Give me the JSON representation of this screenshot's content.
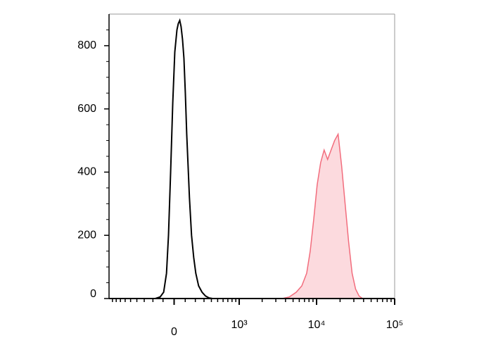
{
  "chart_data": {
    "type": "histogram-overlay",
    "xscale": "asinh",
    "xlim": [
      -1000,
      100000
    ],
    "ylim": [
      0,
      900
    ],
    "xticks": [
      0,
      {
        "value": 1000,
        "label": "10³"
      },
      {
        "value": 10000,
        "label": "10⁴"
      },
      {
        "value": 100000,
        "label": "10⁵"
      }
    ],
    "xminorticks": [
      -900,
      -800,
      -700,
      -600,
      -500,
      -400,
      -300,
      -200,
      -100,
      100,
      200,
      300,
      400,
      500,
      600,
      700,
      800,
      900,
      2000,
      3000,
      4000,
      5000,
      6000,
      7000,
      8000,
      9000,
      20000,
      30000,
      40000,
      50000,
      60000,
      70000,
      80000,
      90000
    ],
    "yticks": [
      0,
      200,
      400,
      600,
      800
    ],
    "yminorticks": [
      50,
      100,
      150,
      250,
      300,
      350,
      450,
      500,
      550,
      650,
      700,
      750,
      850
    ],
    "series": [
      {
        "color": "#000000",
        "filled": false,
        "x": [
          -175,
          -127,
          -94,
          -68,
          -50,
          -31,
          -12,
          6,
          25,
          37,
          50,
          62,
          75,
          88,
          101,
          114,
          127,
          140,
          161,
          183,
          205,
          236,
          276,
          319,
          366,
          417
        ],
        "values": [
          0,
          5,
          20,
          80,
          200,
          400,
          620,
          780,
          850,
          870,
          880,
          860,
          820,
          760,
          650,
          520,
          420,
          320,
          200,
          130,
          80,
          40,
          20,
          8,
          2,
          0
        ]
      },
      {
        "color": "#f26d7d",
        "filled": true,
        "x": [
          3637,
          4468,
          5489,
          6470,
          7470,
          8290,
          9190,
          10180,
          11280,
          12500,
          13850,
          15350,
          17030,
          18870,
          20930,
          23200,
          25720,
          28510,
          31600,
          35020,
          38810
        ],
        "values": [
          0,
          5,
          20,
          40,
          80,
          150,
          250,
          360,
          430,
          470,
          440,
          470,
          500,
          520,
          420,
          300,
          180,
          80,
          30,
          8,
          0
        ]
      }
    ]
  }
}
